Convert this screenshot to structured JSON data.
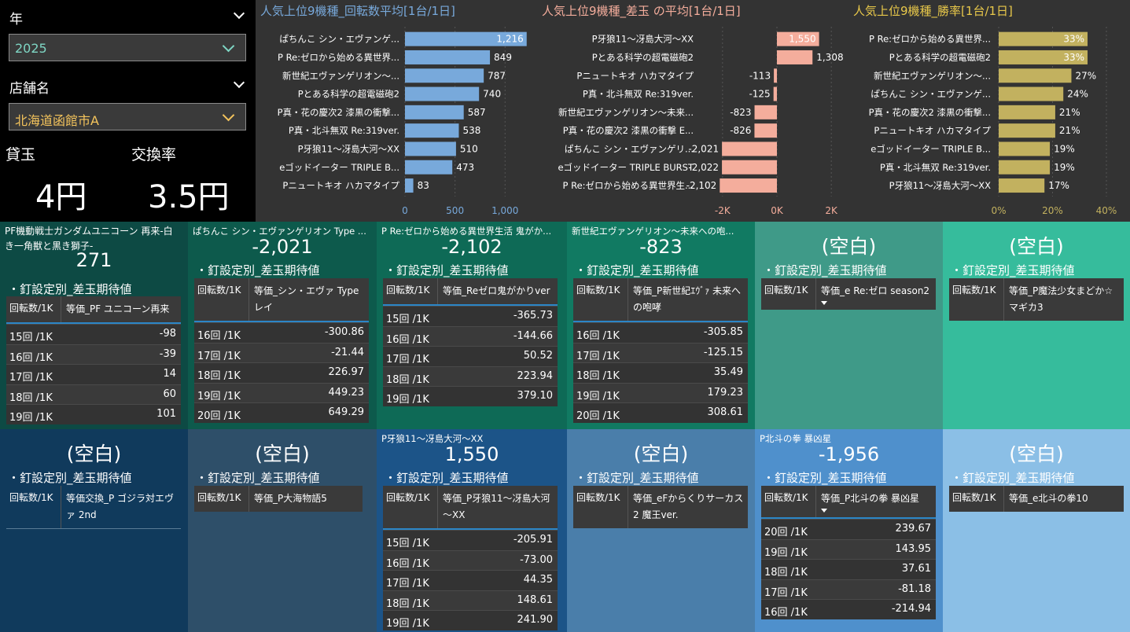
{
  "filters": {
    "year_title": "年",
    "year_value": "2025",
    "store_title": "店舗名",
    "store_value": "北海道函館市A",
    "kashidama_label": "貸玉",
    "kashidama_value": "4円",
    "kokan_label": "交換率",
    "kokan_value": "3.5円"
  },
  "colors": {
    "bar_spins": "#78a9db",
    "bar_diff": "#f4ad9c",
    "bar_win": "#c2b15f",
    "year_accent": "#7fd6c4",
    "store_accent": "#f4c45c"
  },
  "chart_data": [
    {
      "type": "bar",
      "orientation": "horizontal",
      "title": "人気上位9機種_回転数平均[1台/1日]",
      "categories": [
        "ぱちんこ シン・エヴァンゲ...",
        "P Re:ゼロから始める異世界...",
        "新世紀エヴァンゲリオン～...",
        "Pとある科学の超電磁砲2",
        "P真・花の慶次2 漆黒の衝撃...",
        "P真・北斗無双 Re:319ver.",
        "P牙狼11～冴島大河～XX",
        "eゴッドイーター TRIPLE B...",
        "Pニュートキオ ハカマタイプ"
      ],
      "values": [
        1216,
        849,
        787,
        740,
        587,
        538,
        510,
        473,
        83
      ],
      "value_labels": [
        "1,216",
        "849",
        "787",
        "740",
        "587",
        "538",
        "510",
        "473",
        "83"
      ],
      "xlim": [
        0,
        1100
      ],
      "ticks": [
        0,
        500,
        1000
      ],
      "tick_labels": [
        "0",
        "500",
        "1,000"
      ],
      "color": "#78a9db"
    },
    {
      "type": "bar",
      "orientation": "horizontal",
      "title": "人気上位9機種_差玉 の平均[1台/1日]",
      "categories": [
        "P牙狼11～冴島大河～XX",
        "Pとある科学の超電磁砲2",
        "Pニュートキオ ハカマタイプ",
        "P真・北斗無双 Re:319ver.",
        "新世紀エヴァンゲリオン～未来...",
        "P真・花の慶次2 漆黒の衝撃 E...",
        "ぱちんこ シン・エヴァンゲリ...",
        "eゴッドイーター TRIPLE BURST",
        "P Re:ゼロから始める異世界生..."
      ],
      "values": [
        1550,
        1308,
        -113,
        -125,
        -823,
        -826,
        -2021,
        -2022,
        -2102
      ],
      "value_labels": [
        "1,550",
        "1,308",
        "-113",
        "-125",
        "-823",
        "-826",
        "-2,021",
        "-2,022",
        "-2,102"
      ],
      "xlim": [
        -2400,
        2400
      ],
      "ticks": [
        -2000,
        0,
        2000
      ],
      "tick_labels": [
        "-2K",
        "0K",
        "2K"
      ],
      "color": "#f4ad9c"
    },
    {
      "type": "bar",
      "orientation": "horizontal",
      "title": "人気上位9機種_勝率[1台/1日]",
      "categories": [
        "P Re:ゼロから始める異世界...",
        "Pとある科学の超電磁砲2",
        "新世紀エヴァンゲリオン～...",
        "ぱちんこ シン・エヴァンゲ...",
        "P真・花の慶次2 漆黒の衝撃...",
        "Pニュートキオ ハカマタイプ",
        "eゴッドイーター TRIPLE B...",
        "P真・北斗無双 Re:319ver.",
        "P牙狼11～冴島大河～XX"
      ],
      "values": [
        33,
        33,
        27,
        24,
        21,
        21,
        19,
        19,
        17
      ],
      "value_labels": [
        "33%",
        "33%",
        "27%",
        "24%",
        "21%",
        "21%",
        "19%",
        "19%",
        "17%"
      ],
      "xlim": [
        0,
        40
      ],
      "ticks": [
        0,
        20,
        40
      ],
      "tick_labels": [
        "0%",
        "20%",
        "40%"
      ],
      "color": "#c2b15f"
    }
  ],
  "tiles": [
    {
      "bg": "#0d4a44",
      "name": "PF機動戦士ガンダムユニコーン 再来-白き一角獣と黒き獅子-",
      "value": "271",
      "subtitle": "・釘設定別_差玉期待値",
      "col1": "回転数/1K",
      "col2": "等価_PF ユニコーン再来",
      "rows": [
        {
          "k": "15回 /1K",
          "v": "-98"
        },
        {
          "k": "16回 /1K",
          "v": "-39"
        },
        {
          "k": "17回 /1K",
          "v": "14"
        },
        {
          "k": "18回 /1K",
          "v": "60"
        },
        {
          "k": "19回 /1K",
          "v": "101"
        }
      ]
    },
    {
      "bg": "#0d5a4c",
      "name": "ぱちんこ シン・エヴァンゲリオン Type ...",
      "value": "-2,021",
      "subtitle": "・釘設定別_差玉期待値",
      "col1": "回転数/1K",
      "col2": "等価_シン・エヴァ Type レイ",
      "rows": [
        {
          "k": "16回 /1K",
          "v": "-300.86"
        },
        {
          "k": "17回 /1K",
          "v": "-21.44"
        },
        {
          "k": "18回 /1K",
          "v": "226.97"
        },
        {
          "k": "19回 /1K",
          "v": "449.23"
        },
        {
          "k": "20回 /1K",
          "v": "649.29"
        }
      ]
    },
    {
      "bg": "#0e6a56",
      "name": "P Re:ゼロから始める異世界生活 鬼がか...",
      "value": "-2,102",
      "subtitle": "・釘設定別_差玉期待値",
      "col1": "回転数/1K",
      "col2": "等価_Reゼロ鬼がかりver",
      "rows": [
        {
          "k": "15回 /1K",
          "v": "-365.73"
        },
        {
          "k": "16回 /1K",
          "v": "-144.66"
        },
        {
          "k": "17回 /1K",
          "v": "50.52"
        },
        {
          "k": "18回 /1K",
          "v": "223.94"
        },
        {
          "k": "19回 /1K",
          "v": "379.10"
        }
      ]
    },
    {
      "bg": "#117a62",
      "name": "新世紀エヴァンゲリオン～未来への咆...",
      "value": "-823",
      "subtitle": "・釘設定別_差玉期待値",
      "col1": "回転数/1K",
      "col2": "等価_P新世紀ｴｳﾞｧ 未来への咆哮",
      "rows": [
        {
          "k": "16回 /1K",
          "v": "-305.85"
        },
        {
          "k": "17回 /1K",
          "v": "-125.15"
        },
        {
          "k": "18回 /1K",
          "v": "35.49"
        },
        {
          "k": "19回 /1K",
          "v": "179.23"
        },
        {
          "k": "20回 /1K",
          "v": "308.61"
        }
      ]
    },
    {
      "bg": "#3f9a88",
      "name": "",
      "value": "(空白)",
      "subtitle": "・釘設定別_差玉期待値",
      "col1": "回転数/1K",
      "col2": "等価_e Re:ゼロ season2",
      "rows": []
    },
    {
      "bg": "#36bc9c",
      "name": "",
      "value": "(空白)",
      "subtitle": "・釘設定別_差玉期待値",
      "col1": "回転数/1K",
      "col2": "等価_P魔法少女まどか☆マギカ3",
      "rows": []
    },
    {
      "bg": "#103a5c",
      "name": "",
      "value": "(空白)",
      "subtitle": "・釘設定別_差玉期待値",
      "col1": "回転数/1K",
      "col2": "等価交換_P ゴジラ対エヴァ 2nd",
      "rows": []
    },
    {
      "bg": "#2e4f69",
      "name": "",
      "value": "(空白)",
      "subtitle": "・釘設定別_差玉期待値",
      "col1": "回転数/1K",
      "col2": "等価_P大海物語5",
      "rows": []
    },
    {
      "bg": "#1c5488",
      "name": "P牙狼11～冴島大河～XX",
      "value": "1,550",
      "subtitle": "・釘設定別_差玉期待値",
      "col1": "回転数/1K",
      "col2": "等価_P牙狼11～冴島大河～XX",
      "rows": [
        {
          "k": "15回 /1K",
          "v": "-205.91"
        },
        {
          "k": "16回 /1K",
          "v": "-73.00"
        },
        {
          "k": "17回 /1K",
          "v": "44.35"
        },
        {
          "k": "18回 /1K",
          "v": "148.61"
        },
        {
          "k": "19回 /1K",
          "v": "241.90"
        }
      ]
    },
    {
      "bg": "#4a7eaa",
      "name": "",
      "value": "(空白)",
      "subtitle": "・釘設定別_差玉期待値",
      "col1": "回転数/1K",
      "col2": "等価_eFからくりサーカス2 魔王ver.",
      "rows": []
    },
    {
      "bg": "#4f90cc",
      "name": "P北斗の拳 暴凶星",
      "value": "-1,956",
      "subtitle": "・釘設定別_差玉期待値",
      "col1": "回転数/1K",
      "col2": "等価_P北斗の拳 暴凶星",
      "rows": [
        {
          "k": "20回 /1K",
          "v": "239.67"
        },
        {
          "k": "19回 /1K",
          "v": "143.95"
        },
        {
          "k": "18回 /1K",
          "v": "37.61"
        },
        {
          "k": "17回 /1K",
          "v": "-81.18"
        },
        {
          "k": "16回 /1K",
          "v": "-214.94"
        }
      ]
    },
    {
      "bg": "#8bbfe6",
      "name": "",
      "value": "(空白)",
      "subtitle": "・釘設定別_差玉期待値",
      "col1": "回転数/1K",
      "col2": "等価_e北斗の拳10",
      "rows": []
    }
  ]
}
